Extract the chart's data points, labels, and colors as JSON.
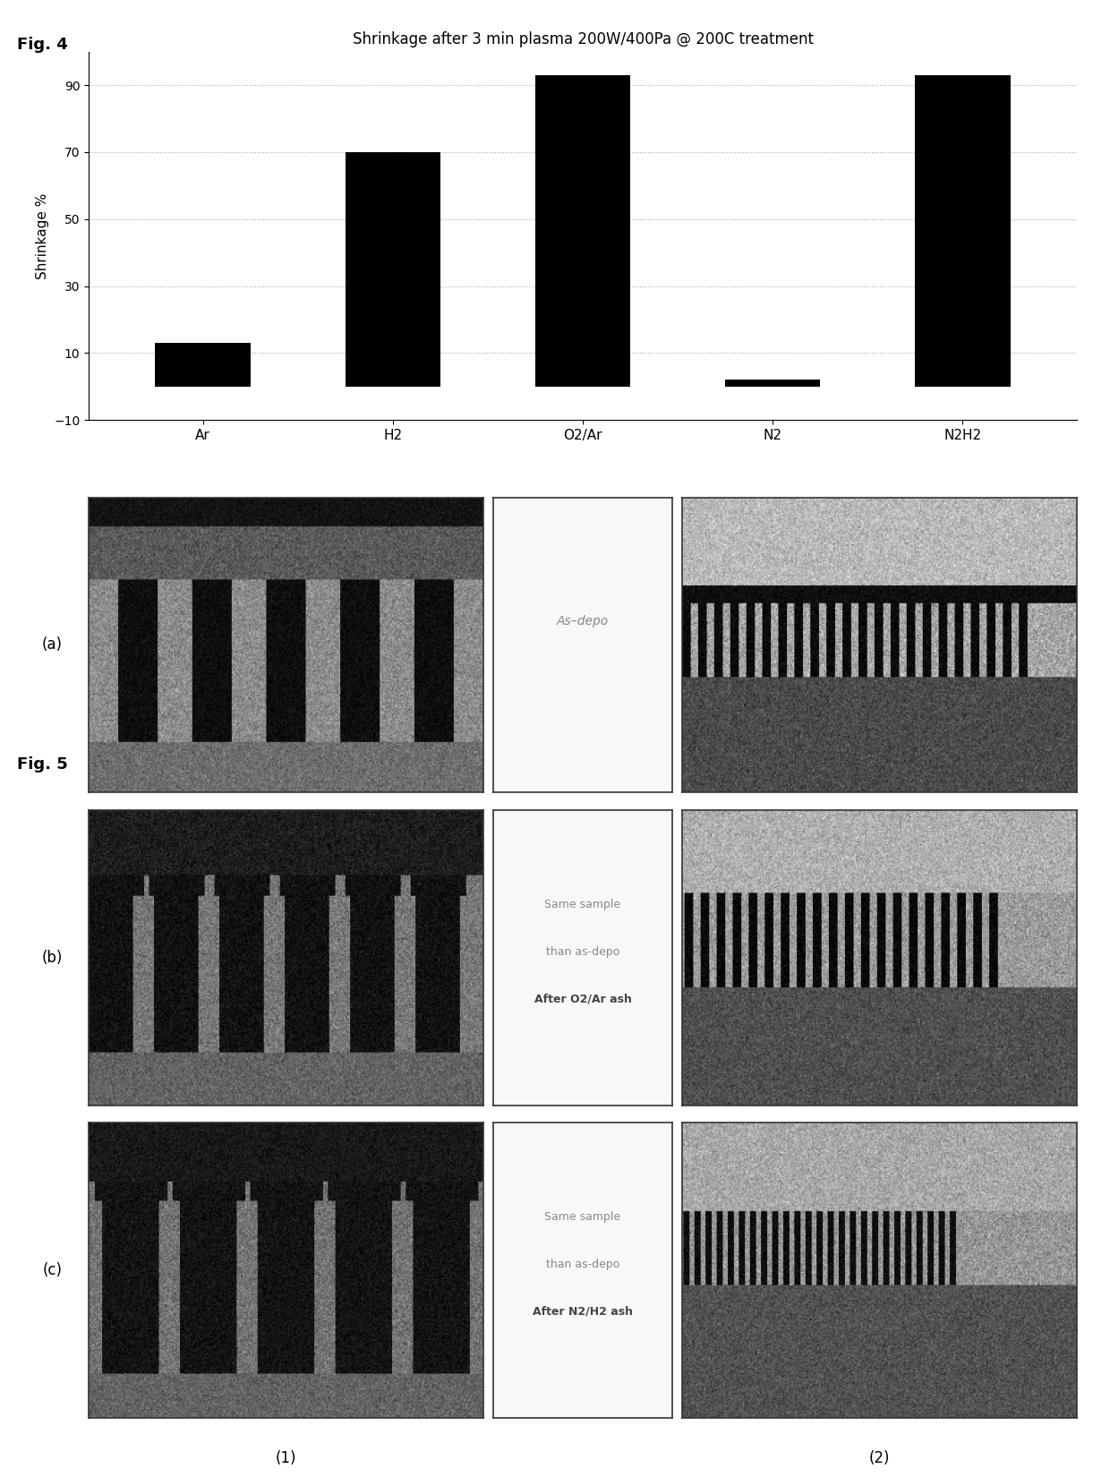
{
  "fig4_title_label": "Fig. 4",
  "fig5_title_label": "Fig. 5",
  "chart_title": "Shrinkage after 3 min plasma 200W/400Pa @ 200C treatment",
  "categories": [
    "Ar",
    "H2",
    "O2/Ar",
    "N2",
    "N2H2"
  ],
  "values": [
    13,
    70,
    93,
    2,
    93
  ],
  "ylabel": "Shrinkage %",
  "ylim": [
    -10,
    100
  ],
  "yticks": [
    -10,
    10,
    30,
    50,
    70,
    90
  ],
  "bar_color": "#000000",
  "bar_width": 0.5,
  "grid_color": "#aaaaaa",
  "background_color": "#ffffff",
  "row_labels": [
    "(a)",
    "(b)",
    "(c)"
  ],
  "col_labels": [
    "(1)",
    "(2)"
  ],
  "annotations_a": [
    "As–depo"
  ],
  "annotations_b": [
    "Same sample",
    "than as-depo",
    "After O2/Ar ash"
  ],
  "annotations_c": [
    "Same sample",
    "than as-depo",
    "After N2/H2 ash"
  ],
  "bold_line_b": 2,
  "bold_line_c": 2
}
